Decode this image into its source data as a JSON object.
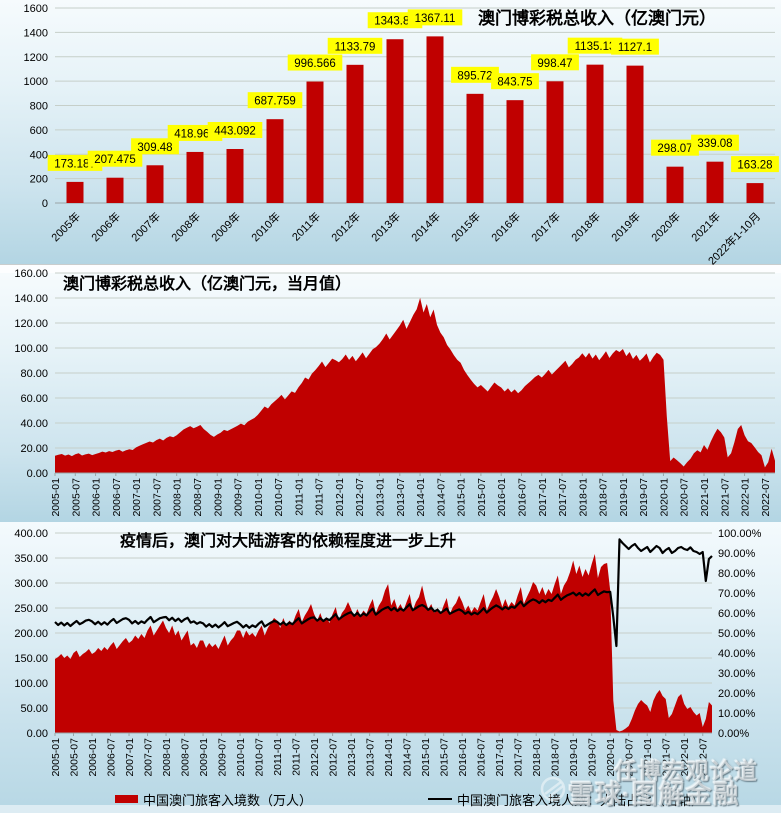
{
  "watermark": {
    "line1": "任博宏观论道",
    "line2": "雪球·图解金融"
  },
  "colors": {
    "red": "#c00000",
    "label_bg": "#ffff00",
    "line_black": "#000000"
  },
  "month_tick_labels": [
    "2005-01",
    "2005-07",
    "2006-01",
    "2006-07",
    "2007-01",
    "2007-07",
    "2008-01",
    "2008-07",
    "2009-01",
    "2009-07",
    "2010-01",
    "2010-07",
    "2011-01",
    "2011-07",
    "2012-01",
    "2012-07",
    "2013-01",
    "2013-07",
    "2014-01",
    "2014-07",
    "2015-01",
    "2015-07",
    "2016-01",
    "2016-07",
    "2017-01",
    "2017-07",
    "2018-01",
    "2018-07",
    "2019-01",
    "2019-07",
    "2020-01",
    "2020-07",
    "2021-01",
    "2021-07",
    "2022-01",
    "2022-07"
  ],
  "chart_data": [
    {
      "type": "bar",
      "title": "澳门博彩税总收入（亿澳门元）",
      "categories": [
        "2005年",
        "2006年",
        "2007年",
        "2008年",
        "2009年",
        "2010年",
        "2011年",
        "2012年",
        "2013年",
        "2014年",
        "2015年",
        "2016年",
        "2017年",
        "2018年",
        "2019年",
        "2020年",
        "2021年",
        "2022年1-10月"
      ],
      "values": [
        173.187,
        207.475,
        309.48,
        418.965,
        443.092,
        687.759,
        996.566,
        1133.79,
        1343.81,
        1367.11,
        895.72,
        843.75,
        998.47,
        1135.13,
        1127.1,
        298.07,
        339.08,
        163.28
      ],
      "data_labels": [
        "173.187",
        "207.475",
        "309.48",
        "418.965",
        "443.092",
        "687.759",
        "996.566",
        "1133.79",
        "1343.81",
        "1367.11",
        "895.72",
        "843.75",
        "998.47",
        "1135.13",
        "1127.1",
        "298.07",
        "339.08",
        "163.28"
      ],
      "ylim": [
        0,
        1600
      ],
      "ytick_labels": [
        "0",
        "200",
        "400",
        "600",
        "800",
        "1000",
        "1200",
        "1400",
        "1600"
      ],
      "grid": true,
      "legend_position": "none"
    },
    {
      "type": "area",
      "title": "澳门博彩税总收入（亿澳门元，当月值）",
      "x_range": [
        "2005-01",
        "2022-10"
      ],
      "ylim": [
        0,
        160
      ],
      "ytick_labels": [
        "0.00",
        "20.00",
        "40.00",
        "60.00",
        "80.00",
        "100.00",
        "120.00",
        "140.00",
        "160.00"
      ],
      "grid": true,
      "legend_position": "none",
      "values": [
        13.8,
        14.6,
        15.2,
        13.9,
        14.8,
        13.5,
        15.0,
        15.8,
        14.0,
        14.9,
        15.5,
        14.3,
        15.2,
        16.0,
        17.1,
        16.4,
        17.5,
        16.8,
        17.9,
        18.6,
        17.0,
        18.2,
        19.0,
        18.4,
        20.5,
        21.8,
        23.0,
        24.1,
        25.2,
        24.4,
        26.3,
        27.5,
        26.0,
        28.1,
        29.4,
        28.6,
        30.2,
        32.5,
        34.8,
        36.2,
        37.5,
        35.8,
        37.0,
        38.4,
        35.2,
        33.0,
        30.5,
        28.9,
        30.8,
        32.2,
        34.5,
        33.6,
        35.0,
        36.4,
        37.8,
        39.5,
        38.2,
        41.0,
        42.6,
        44.0,
        46.5,
        49.8,
        53.2,
        51.6,
        55.0,
        57.4,
        59.8,
        62.5,
        58.9,
        62.0,
        65.3,
        64.1,
        68.5,
        72.0,
        76.4,
        74.8,
        79.5,
        82.3,
        85.6,
        89.2,
        84.7,
        88.0,
        91.5,
        90.2,
        88.6,
        91.2,
        94.8,
        90.5,
        93.7,
        89.4,
        92.8,
        96.5,
        91.8,
        95.4,
        99.0,
        100.8,
        103.5,
        107.2,
        111.6,
        106.8,
        110.5,
        114.2,
        118.0,
        122.6,
        115.3,
        120.8,
        126.5,
        131.0,
        140.1,
        128.4,
        135.2,
        124.6,
        130.8,
        118.5,
        112.3,
        108.6,
        102.4,
        98.7,
        94.2,
        90.5,
        88.2,
        82.5,
        78.3,
        74.6,
        71.2,
        68.5,
        70.4,
        67.8,
        65.2,
        68.9,
        72.4,
        70.1,
        68.4,
        65.2,
        67.8,
        64.5,
        66.9,
        63.8,
        66.2,
        69.5,
        71.8,
        74.2,
        76.8,
        78.5,
        76.4,
        79.2,
        82.5,
        78.8,
        81.6,
        84.3,
        87.0,
        89.8,
        84.5,
        87.2,
        90.6,
        92.4,
        95.8,
        92.4,
        96.2,
        91.5,
        94.8,
        90.2,
        93.6,
        97.4,
        92.0,
        95.6,
        98.4,
        96.8,
        99.2,
        93.5,
        96.8,
        91.2,
        94.5,
        89.8,
        92.4,
        95.6,
        88.4,
        92.8,
        96.2,
        94.5,
        90.6,
        45.2,
        9.5,
        12.4,
        10.2,
        7.8,
        5.2,
        8.6,
        11.4,
        15.8,
        18.2,
        16.5,
        22.4,
        18.6,
        25.2,
        30.8,
        35.4,
        32.6,
        28.4,
        12.5,
        15.8,
        24.6,
        35.2,
        38.4,
        30.2,
        25.4,
        24.0,
        20.5,
        16.8,
        14.2,
        4.5,
        8.6,
        19.4,
        9.8
      ]
    },
    {
      "type": "combo",
      "title": "疫情后，澳门对大陆游客的依赖程度进一步上升",
      "x_range": [
        "2005-01",
        "2022-10"
      ],
      "left_ylim": [
        0,
        400
      ],
      "left_ytick_labels": [
        "0.00",
        "50.00",
        "100.00",
        "150.00",
        "200.00",
        "250.00",
        "300.00",
        "350.00",
        "400.00"
      ],
      "right_ylim": [
        0,
        100
      ],
      "right_ytick_labels": [
        "0.00%",
        "10.00%",
        "20.00%",
        "30.00%",
        "40.00%",
        "50.00%",
        "60.00%",
        "70.00%",
        "80.00%",
        "90.00%",
        "100.00%"
      ],
      "grid": true,
      "legend_position": "bottom",
      "series": [
        {
          "name": "中国澳门旅客入境数（万人）",
          "type": "area",
          "axis": "left",
          "color": "#c00000",
          "values": [
            148,
            152,
            158,
            150,
            155,
            148,
            160,
            165,
            152,
            158,
            162,
            168,
            158,
            162,
            170,
            164,
            172,
            166,
            175,
            182,
            168,
            176,
            184,
            190,
            180,
            185,
            195,
            188,
            198,
            190,
            205,
            215,
            195,
            205,
            215,
            225,
            210,
            200,
            215,
            195,
            205,
            185,
            195,
            205,
            175,
            180,
            170,
            185,
            185,
            170,
            180,
            172,
            178,
            168,
            182,
            195,
            175,
            185,
            192,
            205,
            205,
            190,
            205,
            195,
            200,
            192,
            205,
            215,
            195,
            210,
            220,
            230,
            225,
            210,
            230,
            215,
            225,
            218,
            235,
            248,
            222,
            235,
            245,
            258,
            238,
            225,
            240,
            222,
            232,
            220,
            238,
            252,
            225,
            240,
            248,
            262,
            248,
            232,
            248,
            235,
            245,
            238,
            255,
            268,
            240,
            255,
            265,
            285,
            298,
            255,
            268,
            248,
            258,
            245,
            262,
            278,
            245,
            262,
            272,
            295,
            268,
            248,
            258,
            240,
            250,
            238,
            255,
            270,
            238,
            252,
            260,
            275,
            262,
            245,
            255,
            242,
            252,
            245,
            262,
            278,
            245,
            260,
            272,
            288,
            272,
            252,
            268,
            252,
            262,
            255,
            275,
            292,
            258,
            272,
            285,
            302,
            295,
            278,
            292,
            275,
            288,
            278,
            298,
            315,
            278,
            295,
            305,
            322,
            345,
            318,
            335,
            312,
            328,
            315,
            338,
            358,
            310,
            332,
            338,
            340,
            285,
            65,
            6,
            3,
            5,
            9,
            14,
            28,
            45,
            58,
            66,
            60,
            55,
            42,
            65,
            78,
            86,
            74,
            68,
            30,
            38,
            55,
            72,
            78,
            58,
            48,
            52,
            42,
            35,
            40,
            12,
            28,
            62,
            55
          ]
        },
        {
          "name": "中国澳门旅客入境人数：大陆占比（右轴）",
          "type": "line",
          "axis": "right",
          "color": "#000000",
          "values": [
            55.5,
            54.0,
            55.2,
            53.8,
            55.0,
            53.5,
            54.8,
            56.0,
            54.4,
            55.2,
            56.2,
            56.6,
            55.8,
            54.4,
            55.6,
            54.2,
            55.4,
            54.2,
            55.8,
            57.0,
            55.0,
            56.0,
            57.0,
            57.4,
            56.6,
            54.8,
            56.0,
            54.6,
            55.8,
            55.0,
            56.6,
            58.0,
            55.4,
            56.4,
            57.4,
            57.8,
            58.0,
            56.4,
            57.6,
            56.0,
            57.2,
            55.6,
            56.8,
            57.6,
            55.2,
            55.8,
            54.6,
            55.4,
            54.8,
            53.2,
            54.4,
            53.0,
            54.2,
            52.8,
            54.0,
            55.4,
            53.4,
            54.2,
            55.0,
            55.6,
            54.4,
            52.8,
            54.0,
            52.6,
            53.8,
            53.0,
            54.6,
            55.8,
            53.2,
            54.2,
            55.2,
            56.0,
            55.6,
            54.2,
            55.4,
            54.0,
            55.2,
            54.4,
            56.0,
            57.4,
            54.8,
            55.8,
            56.8,
            57.6,
            57.8,
            56.2,
            57.4,
            56.0,
            57.2,
            56.4,
            58.0,
            59.4,
            56.8,
            58.0,
            59.0,
            59.8,
            60.4,
            58.6,
            60.0,
            58.4,
            59.8,
            58.8,
            60.6,
            62.2,
            59.2,
            60.4,
            61.6,
            62.4,
            63.0,
            61.4,
            62.6,
            61.0,
            62.2,
            61.2,
            62.8,
            64.4,
            61.4,
            62.4,
            63.4,
            64.0,
            63.2,
            61.6,
            62.6,
            60.8,
            61.6,
            60.0,
            61.0,
            62.2,
            59.6,
            60.4,
            61.2,
            61.8,
            61.0,
            59.6,
            60.6,
            59.2,
            60.2,
            59.4,
            60.8,
            62.4,
            60.2,
            61.6,
            62.8,
            63.8,
            63.0,
            61.8,
            63.0,
            62.0,
            63.2,
            62.6,
            64.2,
            65.8,
            63.4,
            64.8,
            66.0,
            66.8,
            66.2,
            65.0,
            66.4,
            65.4,
            66.6,
            66.0,
            67.6,
            69.2,
            66.6,
            67.8,
            68.8,
            69.4,
            70.2,
            68.8,
            70.0,
            68.6,
            69.8,
            68.8,
            70.4,
            71.8,
            69.0,
            70.0,
            70.8,
            70.4,
            70.6,
            58.0,
            43.5,
            96.8,
            95.0,
            93.5,
            92.0,
            93.5,
            94.5,
            92.5,
            91.0,
            92.0,
            93.0,
            90.5,
            92.0,
            93.5,
            92.5,
            90.0,
            91.5,
            92.5,
            90.0,
            91.0,
            92.5,
            93.0,
            92.0,
            91.5,
            92.8,
            91.0,
            90.5,
            89.5,
            90.5,
            76.0,
            87.0,
            88.5
          ]
        }
      ],
      "legend": [
        "中国澳门旅客入境数（万人）",
        "中国澳门旅客入境人数：大陆占比（右轴）"
      ]
    }
  ]
}
